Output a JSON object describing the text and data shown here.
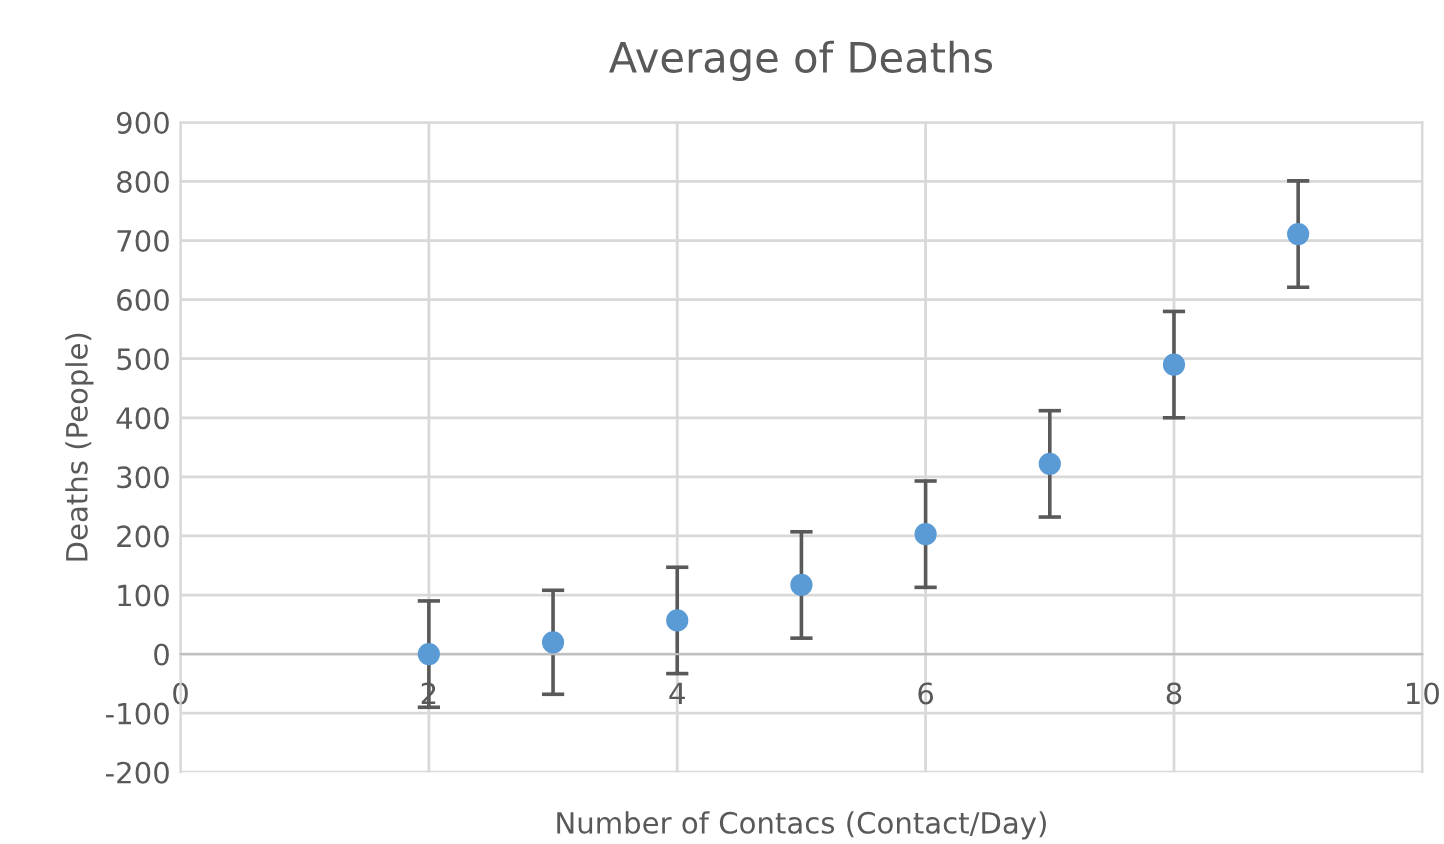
{
  "chart_data": {
    "type": "scatter",
    "title": "Average of Deaths",
    "xlabel": "Number of Contacs (Contact/Day)",
    "ylabel": "Deaths (People)",
    "x": [
      2,
      3,
      4,
      5,
      6,
      7,
      8,
      9
    ],
    "series": [
      {
        "color": "#5b9bd5",
        "values": [
          0,
          20,
          57,
          117,
          203,
          322,
          490,
          711
        ],
        "errors": [
          90,
          88,
          90,
          90,
          90,
          90,
          90,
          90
        ]
      }
    ],
    "xlim": [
      0,
      10
    ],
    "xticks": [
      0,
      2,
      4,
      6,
      8,
      10
    ],
    "ylim": [
      -200,
      900
    ],
    "yticks": [
      -200,
      -100,
      0,
      100,
      200,
      300,
      400,
      500,
      600,
      700,
      800,
      900
    ],
    "grid": true,
    "marker": "circle"
  }
}
